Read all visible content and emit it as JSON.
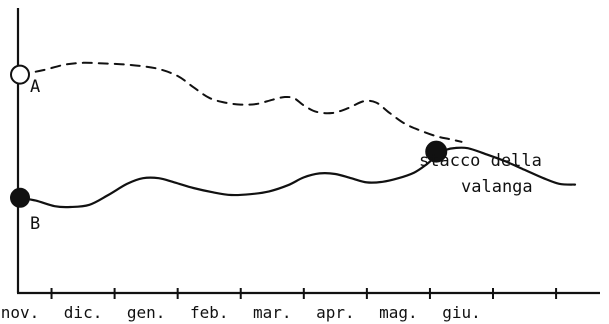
{
  "chart_data": {
    "type": "line",
    "title": "",
    "xlabel": "",
    "ylabel": "",
    "categories": [
      "nov.",
      "dic.",
      "gen.",
      "feb.",
      "mar.",
      "apr.",
      "mag.",
      "giu."
    ],
    "x_range": [
      0,
      8.8
    ],
    "y_range": [
      0,
      10
    ],
    "grid": false,
    "series": [
      {
        "name": "A",
        "style": "dashed",
        "marker_start": "open-circle",
        "points": [
          [
            0.0,
            8.05
          ],
          [
            0.35,
            8.2
          ],
          [
            0.7,
            8.4
          ],
          [
            1.0,
            8.47
          ],
          [
            1.3,
            8.45
          ],
          [
            1.6,
            8.42
          ],
          [
            1.9,
            8.36
          ],
          [
            2.2,
            8.25
          ],
          [
            2.5,
            8.0
          ],
          [
            2.75,
            7.6
          ],
          [
            3.0,
            7.22
          ],
          [
            3.25,
            7.05
          ],
          [
            3.5,
            6.98
          ],
          [
            3.75,
            7.0
          ],
          [
            4.0,
            7.15
          ],
          [
            4.2,
            7.25
          ],
          [
            4.35,
            7.2
          ],
          [
            4.5,
            6.95
          ],
          [
            4.7,
            6.72
          ],
          [
            4.95,
            6.68
          ],
          [
            5.2,
            6.85
          ],
          [
            5.45,
            7.1
          ],
          [
            5.65,
            7.05
          ],
          [
            5.85,
            6.7
          ],
          [
            6.1,
            6.3
          ],
          [
            6.35,
            6.05
          ],
          [
            6.6,
            5.85
          ],
          [
            6.8,
            5.75
          ],
          [
            7.0,
            5.65
          ]
        ]
      },
      {
        "name": "B",
        "style": "solid",
        "marker_start": "filled-circle",
        "points": [
          [
            0.0,
            3.65
          ],
          [
            0.25,
            3.55
          ],
          [
            0.55,
            3.35
          ],
          [
            0.8,
            3.32
          ],
          [
            1.1,
            3.4
          ],
          [
            1.4,
            3.75
          ],
          [
            1.7,
            4.15
          ],
          [
            1.95,
            4.35
          ],
          [
            2.2,
            4.35
          ],
          [
            2.45,
            4.2
          ],
          [
            2.75,
            4.0
          ],
          [
            3.05,
            3.85
          ],
          [
            3.35,
            3.75
          ],
          [
            3.65,
            3.78
          ],
          [
            3.95,
            3.88
          ],
          [
            4.25,
            4.1
          ],
          [
            4.5,
            4.38
          ],
          [
            4.75,
            4.52
          ],
          [
            5.0,
            4.5
          ],
          [
            5.25,
            4.35
          ],
          [
            5.5,
            4.2
          ],
          [
            5.75,
            4.22
          ],
          [
            6.0,
            4.35
          ],
          [
            6.25,
            4.55
          ],
          [
            6.45,
            4.85
          ],
          [
            6.62,
            5.18
          ],
          [
            6.75,
            5.36
          ],
          [
            6.9,
            5.43
          ],
          [
            7.1,
            5.42
          ],
          [
            7.4,
            5.2
          ],
          [
            7.7,
            4.95
          ],
          [
            8.0,
            4.65
          ],
          [
            8.3,
            4.35
          ],
          [
            8.55,
            4.15
          ],
          [
            8.8,
            4.12
          ]
        ]
      }
    ],
    "markers": [
      {
        "series": "A",
        "x": 0.0,
        "y": 8.05,
        "shape": "open-circle"
      },
      {
        "series": "B",
        "x": 0.0,
        "y": 3.65,
        "shape": "filled-circle"
      },
      {
        "series": "B",
        "x": 6.6,
        "y": 5.3,
        "shape": "filled-circle"
      }
    ],
    "annotations": [
      {
        "text": "A",
        "target": "series-a-start"
      },
      {
        "text": "B",
        "target": "series-b-start"
      },
      {
        "text": "stacco della",
        "target": "intersection"
      },
      {
        "text": "valanga",
        "target": "intersection"
      }
    ]
  }
}
